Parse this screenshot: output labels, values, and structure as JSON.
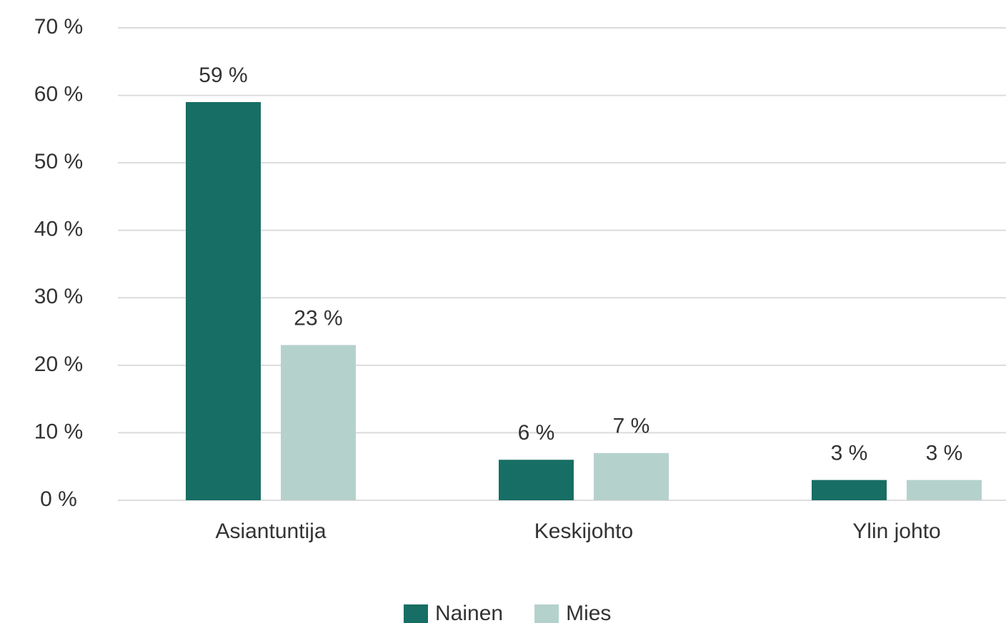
{
  "chart_data": {
    "type": "bar",
    "categories": [
      "Asiantuntija",
      "Keskijohto",
      "Ylin johto"
    ],
    "series": [
      {
        "name": "Nainen",
        "color": "#176e64",
        "values": [
          59,
          6,
          3
        ],
        "value_labels": [
          "59 %",
          "6 %",
          "3 %"
        ]
      },
      {
        "name": "Mies",
        "color": "#b5d1cc",
        "values": [
          23,
          7,
          3
        ],
        "value_labels": [
          "23 %",
          "7 %",
          "3 %"
        ]
      }
    ],
    "ylim": [
      0,
      70
    ],
    "yticks": [
      {
        "value": 0,
        "label": "0 %"
      },
      {
        "value": 10,
        "label": "10 %"
      },
      {
        "value": 20,
        "label": "20 %"
      },
      {
        "value": 30,
        "label": "30 %"
      },
      {
        "value": 40,
        "label": "40 %"
      },
      {
        "value": 50,
        "label": "50 %"
      },
      {
        "value": 60,
        "label": "60 %"
      },
      {
        "value": 70,
        "label": "70 %"
      }
    ],
    "grid": true,
    "legend": "bottom"
  }
}
